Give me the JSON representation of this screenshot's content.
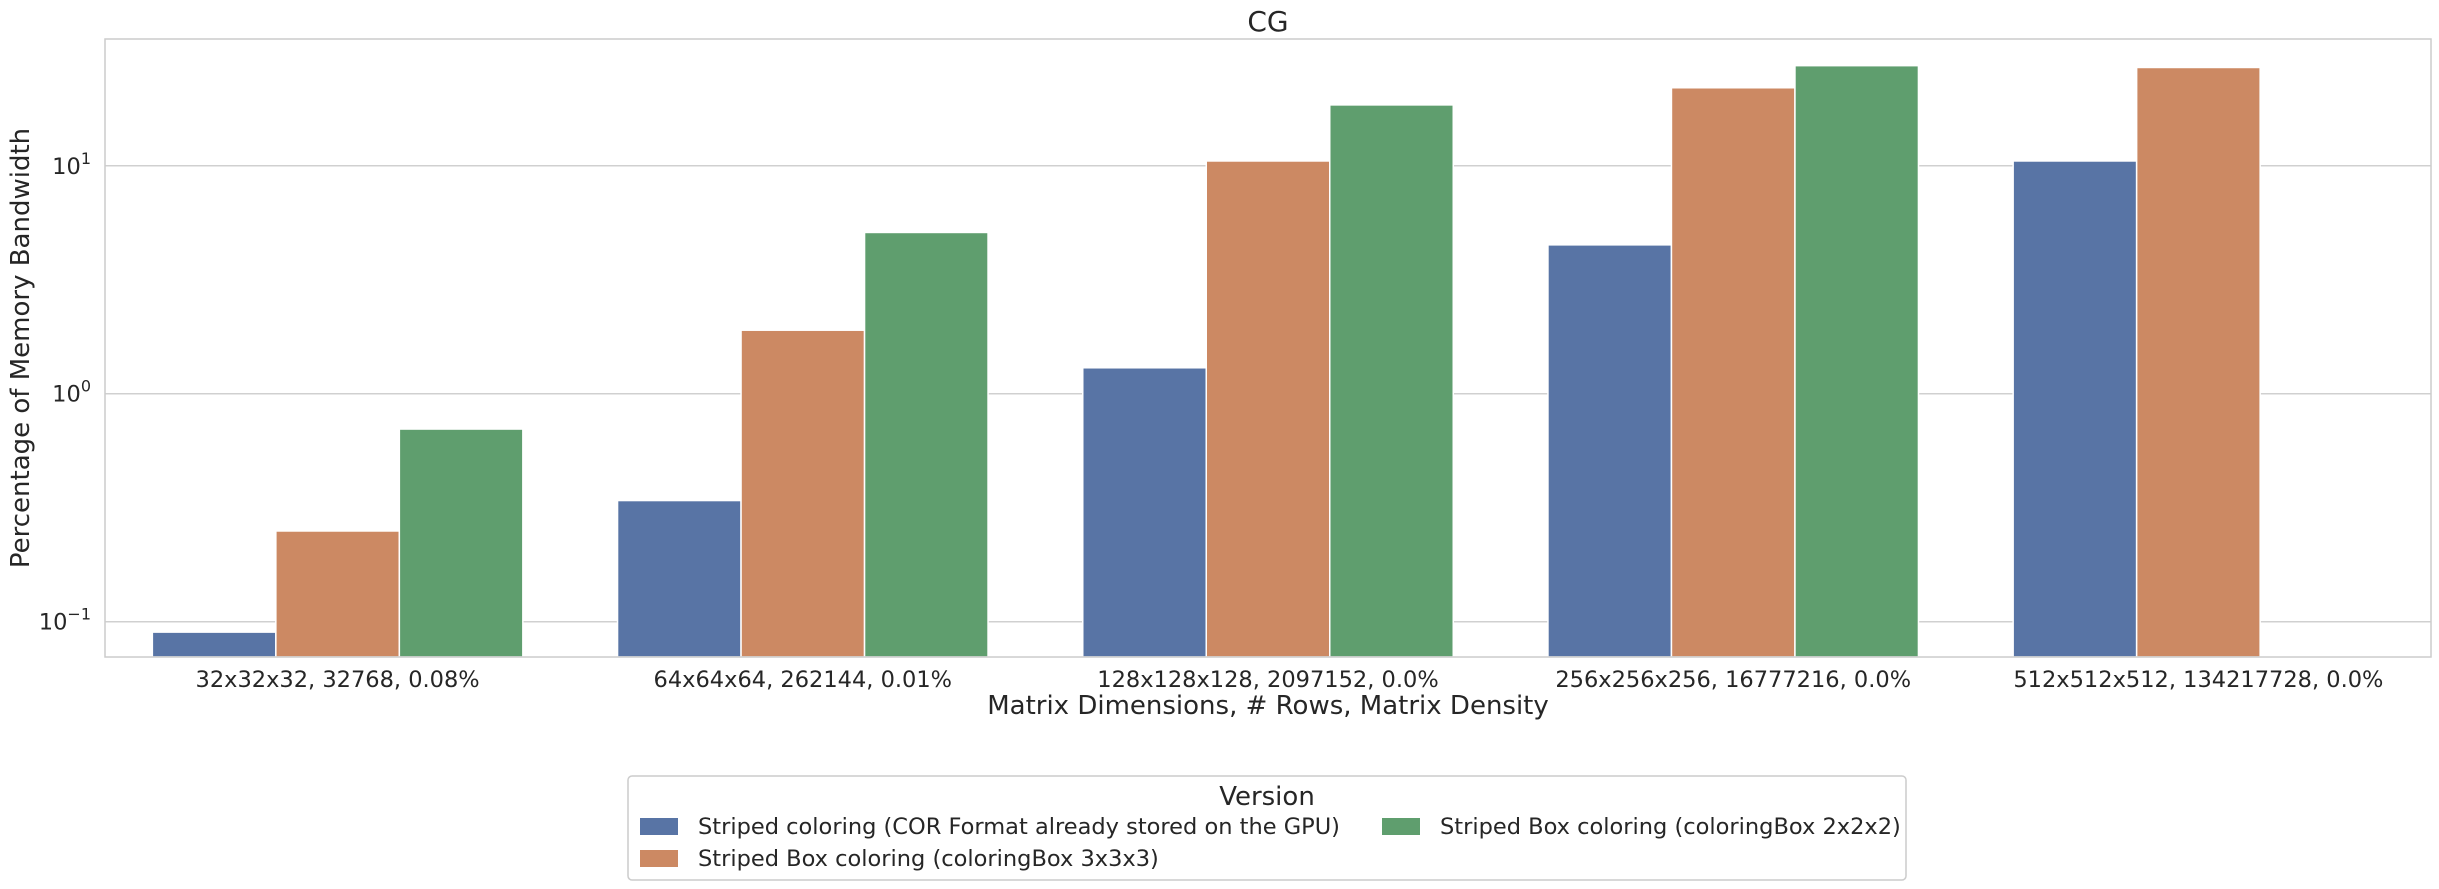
{
  "chart_data": {
    "type": "bar",
    "title": "CG",
    "xlabel": "Matrix Dimensions, # Rows, Matrix Density",
    "ylabel": "Percentage of Memory Bandwidth",
    "yscale": "log",
    "ylim": [
      0.07,
      36
    ],
    "yticks": [
      {
        "value": 0.1,
        "base": "10",
        "exp": "−1"
      },
      {
        "value": 1,
        "base": "10",
        "exp": "0"
      },
      {
        "value": 10,
        "base": "10",
        "exp": "1"
      }
    ],
    "grid": true,
    "categories": [
      "32x32x32, 32768, 0.08%",
      "64x64x64, 262144, 0.01%",
      "128x128x128, 2097152, 0.0%",
      "256x256x256, 16777216, 0.0%",
      "512x512x512, 134217728, 0.0%"
    ],
    "series": [
      {
        "name": "Striped coloring (COR Format already stored on the GPU)",
        "color": "#5874a5",
        "values": [
          0.09,
          0.34,
          1.3,
          4.5,
          10.5
        ]
      },
      {
        "name": "Striped Box coloring (coloringBox 3x3x3)",
        "color": "#cc8963",
        "values": [
          0.25,
          1.9,
          10.5,
          22,
          27
        ]
      },
      {
        "name": "Striped Box coloring (coloringBox 2x2x2)",
        "color": "#5f9e6e",
        "values": [
          0.7,
          5.1,
          18.5,
          27.5,
          null
        ]
      }
    ],
    "legend": {
      "title": "Version",
      "placement": "bottom-center",
      "order": [
        0,
        2,
        1
      ]
    }
  }
}
